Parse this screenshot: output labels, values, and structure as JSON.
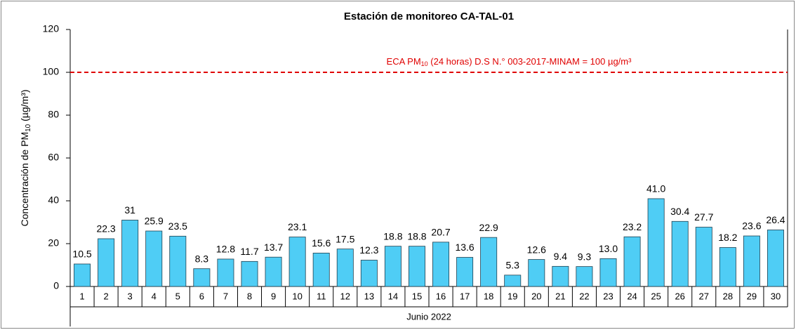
{
  "chart_data": {
    "type": "bar",
    "title": "Estación de monitoreo CA-TAL-01",
    "x_label": "Junio 2022",
    "y_label_parts": [
      "Concentración de PM",
      "10",
      " (µg/m³)"
    ],
    "categories": [
      "1",
      "2",
      "3",
      "4",
      "5",
      "6",
      "7",
      "8",
      "9",
      "10",
      "11",
      "12",
      "13",
      "14",
      "15",
      "16",
      "17",
      "18",
      "19",
      "20",
      "21",
      "22",
      "23",
      "24",
      "25",
      "26",
      "27",
      "28",
      "29",
      "30"
    ],
    "values": [
      10.5,
      22.3,
      31,
      25.9,
      23.5,
      8.3,
      12.8,
      11.7,
      13.7,
      23.1,
      15.6,
      17.5,
      12.3,
      18.8,
      18.8,
      20.7,
      13.6,
      22.9,
      5.3,
      12.6,
      9.4,
      9.3,
      13.0,
      23.2,
      41.0,
      30.4,
      27.7,
      18.2,
      23.6,
      26.4
    ],
    "value_labels": [
      "10.5",
      "22.3",
      "31",
      "25.9",
      "23.5",
      "8.3",
      "12.8",
      "11.7",
      "13.7",
      "23.1",
      "15.6",
      "17.5",
      "12.3",
      "18.8",
      "18.8",
      "20.7",
      "13.6",
      "22.9",
      "5.3",
      "12.6",
      "9.4",
      "9.3",
      "13.0",
      "23.2",
      "41.0",
      "30.4",
      "27.7",
      "18.2",
      "23.6",
      "26.4"
    ],
    "color": "#4fcdf5",
    "ylim": [
      0,
      120
    ],
    "yticks": [
      0,
      20,
      40,
      60,
      80,
      100,
      120
    ],
    "grid": false,
    "reference_line": {
      "value": 100,
      "color": "#e00000",
      "label_parts": [
        "ECA PM",
        "10",
        " (24 horas) D.S N.° 003-2017-MINAM = 100 µg/m³"
      ]
    }
  }
}
